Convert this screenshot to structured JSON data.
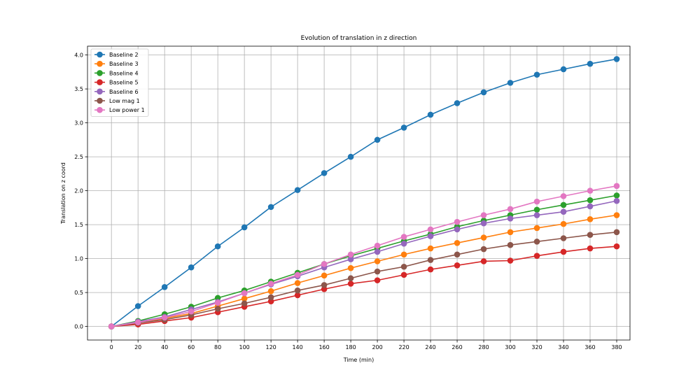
{
  "chart_data": {
    "type": "line",
    "title": "Evolution of translation in z direction",
    "xlabel": "Time (min)",
    "ylabel": "Translation on z coord",
    "x": [
      0,
      20,
      40,
      60,
      80,
      100,
      120,
      140,
      160,
      180,
      200,
      220,
      240,
      260,
      280,
      300,
      320,
      340,
      360,
      380
    ],
    "xlim": [
      -18,
      390
    ],
    "ylim": [
      -0.2,
      4.13
    ],
    "xticks": [
      "0",
      "20",
      "40",
      "60",
      "80",
      "100",
      "120",
      "140",
      "160",
      "180",
      "200",
      "220",
      "240",
      "260",
      "280",
      "300",
      "320",
      "340",
      "360",
      "380"
    ],
    "yticks": [
      "0.0",
      "0.5",
      "1.0",
      "1.5",
      "2.0",
      "2.5",
      "3.0",
      "3.5",
      "4.0"
    ],
    "ytick_values": [
      0.0,
      0.5,
      1.0,
      1.5,
      2.0,
      2.5,
      3.0,
      3.5,
      4.0
    ],
    "grid": true,
    "legend_position": "top-left",
    "series": [
      {
        "name": "Baseline 2",
        "color": "#1f77b4",
        "values": [
          0.0,
          0.3,
          0.58,
          0.87,
          1.18,
          1.46,
          1.76,
          2.01,
          2.26,
          2.5,
          2.75,
          2.93,
          3.12,
          3.29,
          3.45,
          3.59,
          3.71,
          3.79,
          3.87,
          3.94
        ]
      },
      {
        "name": "Baseline 3",
        "color": "#ff7f0e",
        "values": [
          0.0,
          0.05,
          0.12,
          0.19,
          0.3,
          0.41,
          0.52,
          0.64,
          0.75,
          0.86,
          0.96,
          1.06,
          1.15,
          1.23,
          1.31,
          1.39,
          1.45,
          1.51,
          1.58,
          1.64
        ]
      },
      {
        "name": "Baseline 4",
        "color": "#2ca02c",
        "values": [
          0.0,
          0.08,
          0.18,
          0.29,
          0.42,
          0.53,
          0.66,
          0.79,
          0.92,
          1.04,
          1.15,
          1.26,
          1.36,
          1.47,
          1.56,
          1.64,
          1.72,
          1.79,
          1.86,
          1.93
        ]
      },
      {
        "name": "Baseline 5",
        "color": "#d62728",
        "values": [
          0.0,
          0.03,
          0.08,
          0.13,
          0.21,
          0.29,
          0.37,
          0.46,
          0.55,
          0.63,
          0.68,
          0.76,
          0.84,
          0.9,
          0.96,
          0.97,
          1.04,
          1.1,
          1.15,
          1.18
        ]
      },
      {
        "name": "Baseline 6",
        "color": "#9467bd",
        "values": [
          0.0,
          0.07,
          0.14,
          0.25,
          0.36,
          0.49,
          0.62,
          0.74,
          0.87,
          0.99,
          1.1,
          1.22,
          1.33,
          1.43,
          1.52,
          1.59,
          1.64,
          1.69,
          1.77,
          1.85
        ]
      },
      {
        "name": "Low mag 1",
        "color": "#8c564b",
        "values": [
          0.0,
          0.05,
          0.1,
          0.17,
          0.26,
          0.34,
          0.43,
          0.53,
          0.61,
          0.71,
          0.81,
          0.88,
          0.98,
          1.06,
          1.14,
          1.2,
          1.25,
          1.3,
          1.35,
          1.39
        ]
      },
      {
        "name": "Low power 1",
        "color": "#e377c2",
        "values": [
          0.0,
          0.06,
          0.13,
          0.22,
          0.35,
          0.49,
          0.63,
          0.76,
          0.92,
          1.06,
          1.19,
          1.32,
          1.43,
          1.54,
          1.64,
          1.73,
          1.84,
          1.92,
          2.0,
          2.07
        ]
      }
    ]
  }
}
